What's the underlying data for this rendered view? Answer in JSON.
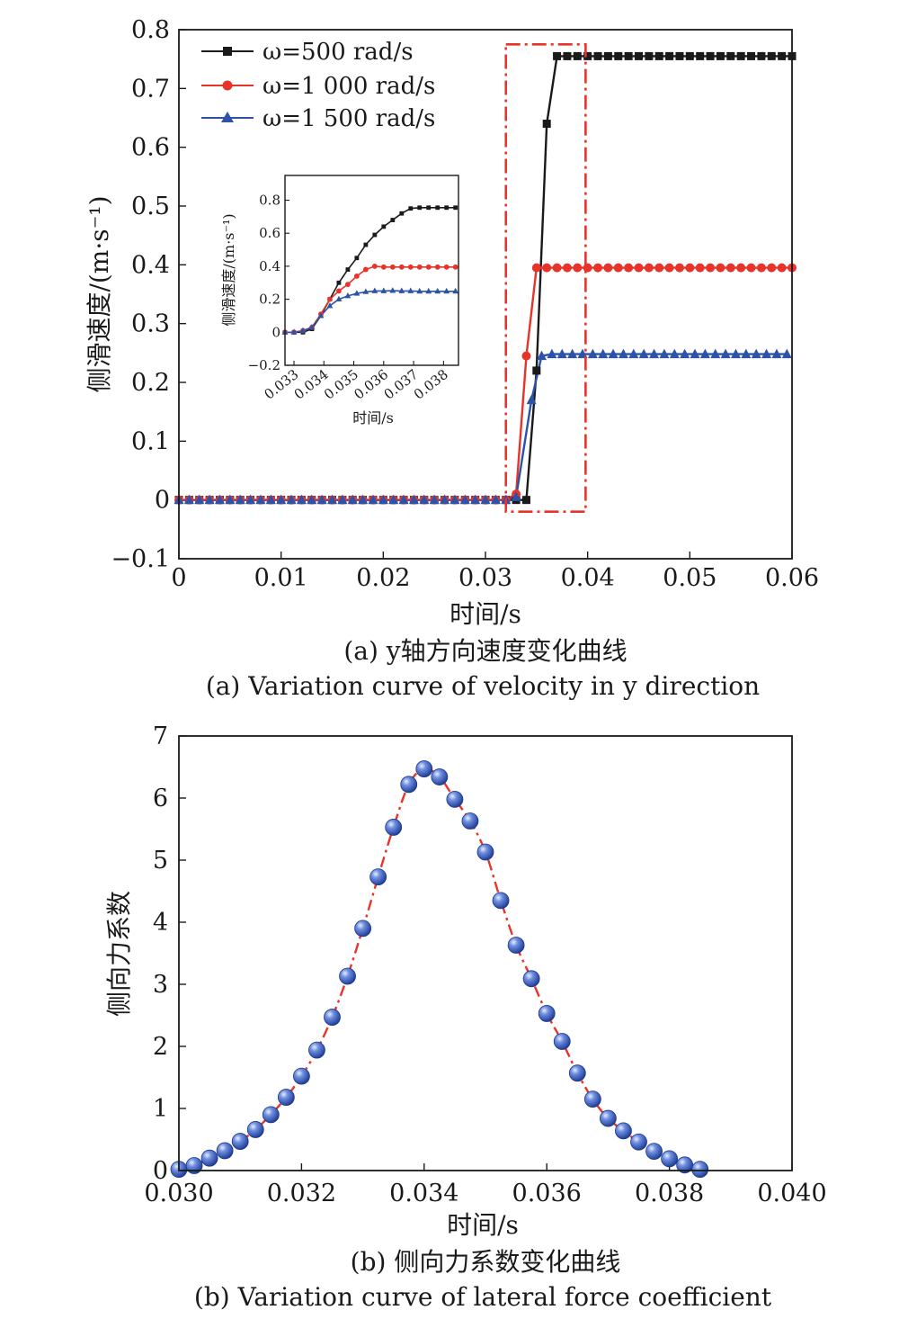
{
  "chart_data": [
    {
      "id": "a",
      "type": "line",
      "xlabel": "时间/s",
      "ylabel": "侧滑速度/(m·s⁻¹)",
      "xlim": [
        0,
        0.06
      ],
      "ylim": [
        -0.1,
        0.8
      ],
      "x_ticks": [
        0,
        0.01,
        0.02,
        0.03,
        0.04,
        0.05,
        0.06
      ],
      "x_tick_labels": [
        "0",
        "0.01",
        "0.02",
        "0.03",
        "0.04",
        "0.05",
        "0.06"
      ],
      "y_ticks": [
        -0.1,
        0,
        0.1,
        0.2,
        0.3,
        0.4,
        0.5,
        0.6,
        0.7,
        0.8
      ],
      "y_tick_labels": [
        "−0.1",
        "0",
        "0.1",
        "0.2",
        "0.3",
        "0.4",
        "0.5",
        "0.6",
        "0.7",
        "0.8"
      ],
      "legend_position": "top-left",
      "caption_cn": "(a) y轴方向速度变化曲线",
      "caption_en": "(a) Variation curve of velocity in y direction",
      "series": [
        {
          "name": "ω=500 rad/s",
          "color": "#1a1a1a",
          "marker": "square",
          "x": [
            0,
            0.001,
            0.002,
            0.003,
            0.004,
            0.005,
            0.006,
            0.007,
            0.008,
            0.009,
            0.01,
            0.011,
            0.012,
            0.013,
            0.014,
            0.015,
            0.016,
            0.017,
            0.018,
            0.019,
            0.02,
            0.021,
            0.022,
            0.023,
            0.024,
            0.025,
            0.026,
            0.027,
            0.028,
            0.029,
            0.03,
            0.031,
            0.032,
            0.033,
            0.034,
            0.035,
            0.036,
            0.037,
            0.038,
            0.039,
            0.04,
            0.041,
            0.042,
            0.043,
            0.044,
            0.045,
            0.046,
            0.047,
            0.048,
            0.049,
            0.05,
            0.051,
            0.052,
            0.053,
            0.054,
            0.055,
            0.056,
            0.057,
            0.058,
            0.059,
            0.06
          ],
          "y": [
            0,
            0,
            0,
            0,
            0,
            0,
            0,
            0,
            0,
            0,
            0,
            0,
            0,
            0,
            0,
            0,
            0,
            0,
            0,
            0,
            0,
            0,
            0,
            0,
            0,
            0,
            0,
            0,
            0,
            0,
            0,
            0,
            0,
            0,
            0,
            0.22,
            0.64,
            0.755,
            0.755,
            0.755,
            0.755,
            0.755,
            0.755,
            0.755,
            0.755,
            0.755,
            0.755,
            0.755,
            0.755,
            0.755,
            0.755,
            0.755,
            0.755,
            0.755,
            0.755,
            0.755,
            0.755,
            0.755,
            0.755,
            0.755,
            0.755
          ]
        },
        {
          "name": "ω=1 000 rad/s",
          "color": "#e8332a",
          "marker": "circle",
          "x": [
            0,
            0.001,
            0.002,
            0.003,
            0.004,
            0.005,
            0.006,
            0.007,
            0.008,
            0.009,
            0.01,
            0.011,
            0.012,
            0.013,
            0.014,
            0.015,
            0.016,
            0.017,
            0.018,
            0.019,
            0.02,
            0.021,
            0.022,
            0.023,
            0.024,
            0.025,
            0.026,
            0.027,
            0.028,
            0.029,
            0.03,
            0.031,
            0.032,
            0.033,
            0.034,
            0.035,
            0.036,
            0.037,
            0.038,
            0.039,
            0.04,
            0.041,
            0.042,
            0.043,
            0.044,
            0.045,
            0.046,
            0.047,
            0.048,
            0.049,
            0.05,
            0.051,
            0.052,
            0.053,
            0.054,
            0.055,
            0.056,
            0.057,
            0.058,
            0.059,
            0.06
          ],
          "y": [
            0,
            0,
            0,
            0,
            0,
            0,
            0,
            0,
            0,
            0,
            0,
            0,
            0,
            0,
            0,
            0,
            0,
            0,
            0,
            0,
            0,
            0,
            0,
            0,
            0,
            0,
            0,
            0,
            0,
            0,
            0,
            0,
            0,
            0.01,
            0.245,
            0.395,
            0.395,
            0.395,
            0.395,
            0.395,
            0.395,
            0.395,
            0.395,
            0.395,
            0.395,
            0.395,
            0.395,
            0.395,
            0.395,
            0.395,
            0.395,
            0.395,
            0.395,
            0.395,
            0.395,
            0.395,
            0.395,
            0.395,
            0.395,
            0.395,
            0.395
          ]
        },
        {
          "name": "ω=1 500 rad/s",
          "color": "#2c53a8",
          "marker": "triangle",
          "x": [
            0,
            0.001,
            0.002,
            0.003,
            0.004,
            0.005,
            0.006,
            0.007,
            0.008,
            0.009,
            0.01,
            0.011,
            0.012,
            0.013,
            0.014,
            0.015,
            0.016,
            0.017,
            0.018,
            0.019,
            0.02,
            0.021,
            0.022,
            0.023,
            0.024,
            0.025,
            0.026,
            0.027,
            0.028,
            0.029,
            0.03,
            0.031,
            0.032,
            0.033,
            0.0345,
            0.0355,
            0.0365,
            0.0375,
            0.0385,
            0.0395,
            0.0405,
            0.0415,
            0.0425,
            0.0435,
            0.0445,
            0.0455,
            0.0465,
            0.0475,
            0.0485,
            0.0495,
            0.0505,
            0.0515,
            0.0525,
            0.0535,
            0.0545,
            0.0555,
            0.0565,
            0.0575,
            0.0585,
            0.0595
          ],
          "y": [
            0,
            0,
            0,
            0,
            0,
            0,
            0,
            0,
            0,
            0,
            0,
            0,
            0,
            0,
            0,
            0,
            0,
            0,
            0,
            0,
            0,
            0,
            0,
            0,
            0,
            0,
            0,
            0,
            0,
            0,
            0,
            0,
            0,
            0.005,
            0.17,
            0.245,
            0.248,
            0.248,
            0.248,
            0.248,
            0.248,
            0.248,
            0.248,
            0.248,
            0.248,
            0.248,
            0.248,
            0.248,
            0.248,
            0.248,
            0.248,
            0.248,
            0.248,
            0.248,
            0.248,
            0.248,
            0.248,
            0.248,
            0.248,
            0.248
          ]
        }
      ],
      "highlight_box": {
        "color": "#e8332a",
        "x0": 0.032,
        "x1": 0.0398,
        "y0": -0.02,
        "y1": 0.775
      },
      "inset": {
        "xlabel": "时间/s",
        "ylabel": "侧滑速度/(m·s⁻¹)",
        "xlim": [
          0.0327,
          0.0385
        ],
        "ylim": [
          -0.2,
          0.95
        ],
        "x_ticks": [
          0.033,
          0.034,
          0.035,
          0.036,
          0.037,
          0.038
        ],
        "x_tick_labels": [
          "0.033",
          "0.034",
          "0.035",
          "0.036",
          "0.037",
          "0.038"
        ],
        "y_ticks": [
          -0.2,
          0,
          0.2,
          0.4,
          0.6,
          0.8
        ],
        "y_tick_labels": [
          "−0.2",
          "0",
          "0.2",
          "0.4",
          "0.6",
          "0.8"
        ],
        "series": [
          {
            "color": "#1a1a1a",
            "marker": "square",
            "x": [
              0.0327,
              0.033,
              0.0333,
              0.0336,
              0.0339,
              0.0342,
              0.0345,
              0.0348,
              0.0351,
              0.0354,
              0.0357,
              0.036,
              0.0363,
              0.0366,
              0.0369,
              0.0372,
              0.0375,
              0.0378,
              0.0381,
              0.0384
            ],
            "y": [
              0,
              0,
              0,
              0.02,
              0.1,
              0.2,
              0.3,
              0.38,
              0.45,
              0.53,
              0.59,
              0.64,
              0.68,
              0.72,
              0.75,
              0.755,
              0.755,
              0.755,
              0.755,
              0.755
            ]
          },
          {
            "color": "#e8332a",
            "marker": "circle",
            "x": [
              0.0327,
              0.033,
              0.0333,
              0.0336,
              0.0339,
              0.0342,
              0.0345,
              0.0348,
              0.0351,
              0.0354,
              0.0357,
              0.036,
              0.0363,
              0.0366,
              0.0369,
              0.0372,
              0.0375,
              0.0378,
              0.0381,
              0.0384
            ],
            "y": [
              0,
              0,
              0.01,
              0.03,
              0.11,
              0.2,
              0.25,
              0.29,
              0.34,
              0.38,
              0.4,
              0.395,
              0.395,
              0.395,
              0.395,
              0.395,
              0.395,
              0.395,
              0.395,
              0.395
            ]
          },
          {
            "color": "#2c53a8",
            "marker": "triangle",
            "x": [
              0.0327,
              0.033,
              0.0333,
              0.0336,
              0.0339,
              0.0342,
              0.0345,
              0.0348,
              0.0351,
              0.0354,
              0.0357,
              0.036,
              0.0363,
              0.0366,
              0.0369,
              0.0372,
              0.0375,
              0.0378,
              0.0381,
              0.0384
            ],
            "y": [
              0,
              0,
              0.01,
              0.03,
              0.1,
              0.16,
              0.2,
              0.22,
              0.235,
              0.245,
              0.25,
              0.25,
              0.252,
              0.25,
              0.25,
              0.248,
              0.248,
              0.248,
              0.248,
              0.248
            ]
          }
        ]
      }
    },
    {
      "id": "b",
      "type": "scatter",
      "xlabel": "时间/s",
      "ylabel": "侧向力系数",
      "xlim": [
        0.03,
        0.04
      ],
      "ylim": [
        0,
        7
      ],
      "x_ticks": [
        0.03,
        0.032,
        0.034,
        0.036,
        0.038,
        0.04
      ],
      "x_tick_labels": [
        "0.030",
        "0.032",
        "0.034",
        "0.036",
        "0.038",
        "0.040"
      ],
      "y_ticks": [
        0,
        1,
        2,
        3,
        4,
        5,
        6,
        7
      ],
      "y_tick_labels": [
        "0",
        "1",
        "2",
        "3",
        "4",
        "5",
        "6",
        "7"
      ],
      "caption_cn": "(b) 侧向力系数变化曲线",
      "caption_en": "(b) Variation curve of lateral force coefficient",
      "line_color": "#e8332a",
      "marker_color": "#2c4fb0",
      "series": [
        {
          "x": [
            0.03,
            0.03025,
            0.0305,
            0.03075,
            0.031,
            0.03125,
            0.0315,
            0.03175,
            0.032,
            0.03225,
            0.0325,
            0.03275,
            0.033,
            0.03325,
            0.0335,
            0.03375,
            0.034,
            0.03425,
            0.0345,
            0.03475,
            0.035,
            0.03525,
            0.0355,
            0.03575,
            0.036,
            0.03625,
            0.0365,
            0.03675,
            0.037,
            0.03725,
            0.0375,
            0.03775,
            0.038,
            0.03825,
            0.0385
          ],
          "y": [
            0.02,
            0.08,
            0.2,
            0.32,
            0.47,
            0.66,
            0.9,
            1.18,
            1.52,
            1.94,
            2.47,
            3.13,
            3.9,
            4.73,
            5.53,
            6.22,
            6.47,
            6.34,
            5.98,
            5.63,
            5.13,
            4.35,
            3.63,
            3.09,
            2.53,
            2.08,
            1.57,
            1.15,
            0.84,
            0.64,
            0.46,
            0.31,
            0.19,
            0.09,
            0.02
          ]
        }
      ]
    }
  ]
}
